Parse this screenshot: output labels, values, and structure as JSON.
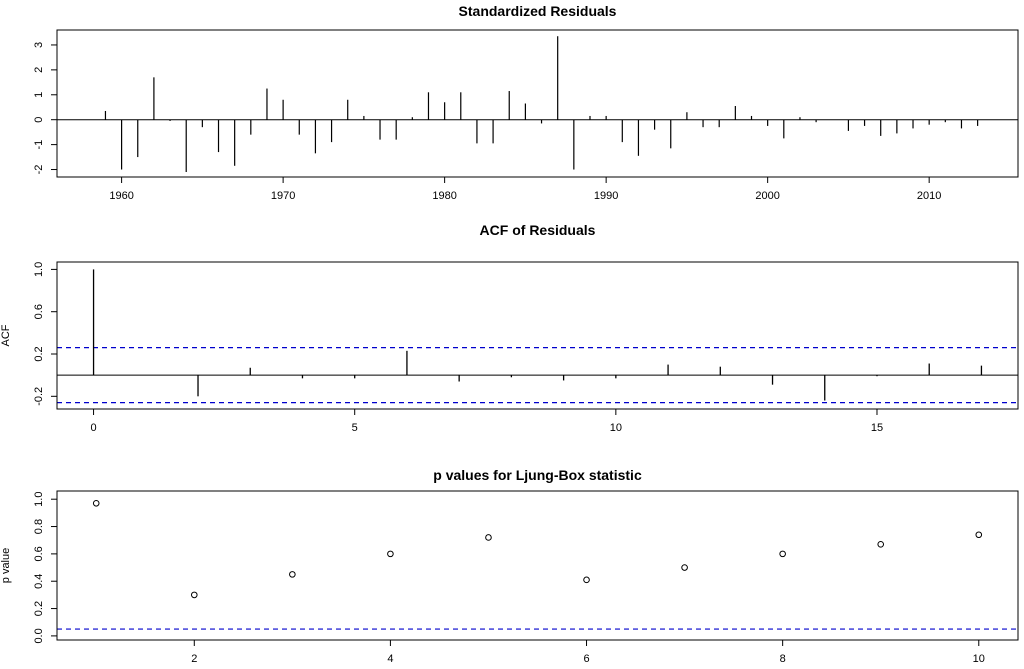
{
  "chart_data": [
    {
      "type": "bar",
      "title": "Standardized Residuals",
      "xlabel": "",
      "ylabel": "",
      "xlim": [
        1956,
        2015.5
      ],
      "ylim": [
        -2.3,
        3.6
      ],
      "x_ticks": [
        1960,
        1970,
        1980,
        1990,
        2000,
        2010
      ],
      "y_ticks": [
        -2,
        -1,
        0,
        1,
        2,
        3
      ],
      "x": [
        1959,
        1960,
        1961,
        1962,
        1963,
        1964,
        1965,
        1966,
        1967,
        1968,
        1969,
        1970,
        1971,
        1972,
        1973,
        1974,
        1975,
        1976,
        1977,
        1978,
        1979,
        1980,
        1981,
        1982,
        1983,
        1984,
        1985,
        1986,
        1987,
        1988,
        1989,
        1990,
        1991,
        1992,
        1993,
        1994,
        1995,
        1996,
        1997,
        1998,
        1999,
        2000,
        2001,
        2002,
        2003,
        2004,
        2005,
        2006,
        2007,
        2008,
        2009,
        2010,
        2011,
        2012,
        2013
      ],
      "values": [
        0.35,
        -2.0,
        -1.5,
        1.7,
        -0.05,
        -2.1,
        -0.3,
        -1.3,
        -1.85,
        -0.6,
        1.25,
        0.8,
        -0.6,
        -1.35,
        -0.9,
        0.8,
        0.15,
        -0.8,
        -0.8,
        0.1,
        1.1,
        0.7,
        1.1,
        -0.95,
        -0.95,
        1.15,
        0.65,
        -0.15,
        3.35,
        -2.0,
        0.15,
        0.15,
        -0.9,
        -1.45,
        -0.4,
        -1.15,
        0.3,
        -0.3,
        -0.3,
        0.55,
        0.15,
        -0.25,
        -0.75,
        0.1,
        -0.1,
        0.0,
        -0.45,
        -0.25,
        -0.65,
        -0.55,
        -0.35,
        -0.2,
        -0.1,
        -0.35,
        -0.25
      ],
      "grid": false,
      "legend": "none"
    },
    {
      "type": "bar",
      "title": "ACF of Residuals",
      "xlabel": "",
      "ylabel": "ACF",
      "xlim": [
        -0.7,
        17.7
      ],
      "ylim": [
        -0.32,
        1.07
      ],
      "x_ticks": [
        0,
        5,
        10,
        15
      ],
      "y_ticks": [
        -0.2,
        0.2,
        0.6,
        1.0
      ],
      "y_tick_labels": [
        "-0.2",
        "0.2",
        "0.6",
        "1.0"
      ],
      "lags": [
        0,
        1,
        2,
        3,
        4,
        5,
        6,
        7,
        8,
        9,
        10,
        11,
        12,
        13,
        14,
        15,
        16,
        17
      ],
      "values": [
        1.0,
        0.0,
        -0.2,
        0.07,
        -0.03,
        -0.03,
        0.23,
        -0.06,
        -0.02,
        -0.05,
        -0.03,
        0.1,
        0.08,
        -0.09,
        -0.24,
        -0.01,
        0.11,
        0.09
      ],
      "confidence_bounds": [
        0.26,
        -0.26
      ],
      "confidence_color": "#0000cc",
      "grid": false,
      "legend": "none"
    },
    {
      "type": "scatter",
      "title": "p values for Ljung-Box statistic",
      "xlabel": "",
      "ylabel": "p value",
      "xlim": [
        0.6,
        10.4
      ],
      "ylim": [
        -0.03,
        1.06
      ],
      "x_ticks": [
        2,
        4,
        6,
        8,
        10
      ],
      "y_ticks": [
        0.0,
        0.2,
        0.4,
        0.6,
        0.8,
        1.0
      ],
      "y_tick_labels": [
        "0.0",
        "0.2",
        "0.4",
        "0.6",
        "0.8",
        "1.0"
      ],
      "x": [
        1,
        2,
        3,
        4,
        5,
        6,
        7,
        8,
        9,
        10
      ],
      "values": [
        0.97,
        0.3,
        0.45,
        0.6,
        0.72,
        0.41,
        0.5,
        0.6,
        0.67,
        0.74
      ],
      "reference_line": 0.05,
      "reference_color": "#0000cc",
      "grid": false,
      "legend": "none"
    }
  ]
}
